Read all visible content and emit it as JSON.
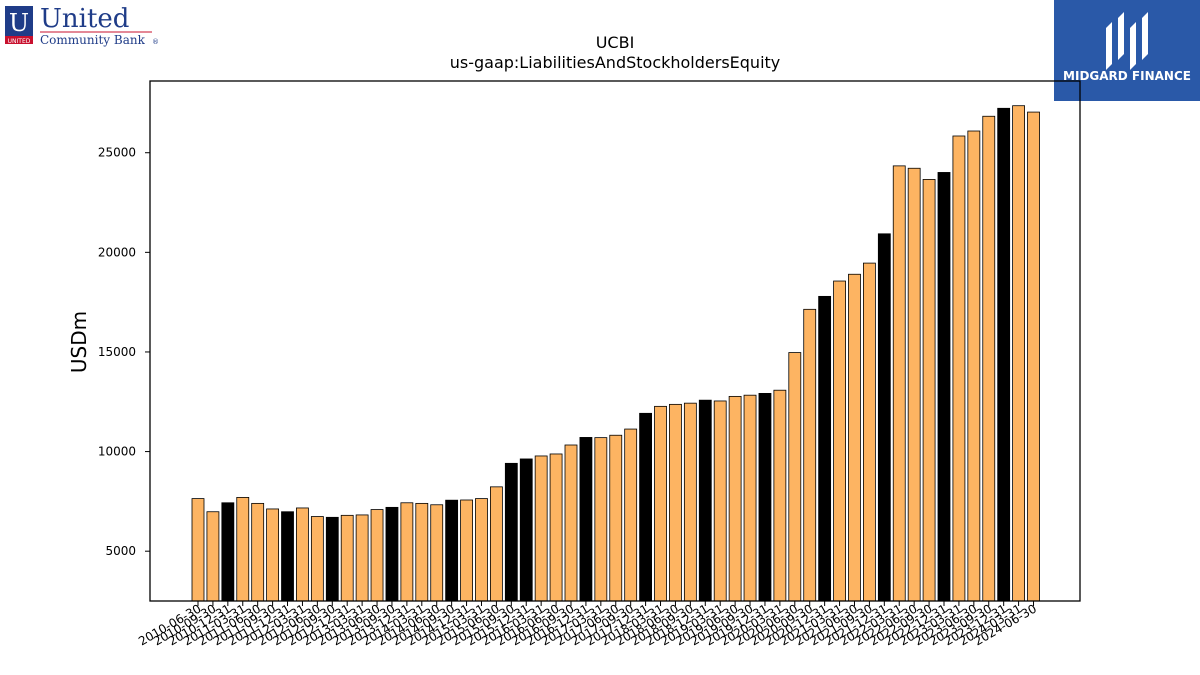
{
  "header": {
    "left_logo": {
      "name": "United",
      "subname": "Community Bank",
      "badge_letter": "U",
      "badge_caption": "UNITED",
      "mark": "®"
    },
    "right_logo": {
      "name": "MIDGARD FINANCE"
    }
  },
  "chart_data": {
    "type": "bar",
    "title": "UCBI",
    "subtitle": "us-gaap:LiabilitiesAndStockholdersEquity",
    "xlabel": "",
    "ylabel": "USDm",
    "ylim": [
      2500,
      28600
    ],
    "yticks": [
      5000,
      10000,
      15000,
      20000,
      25000
    ],
    "grid": false,
    "colors": {
      "quarter": "#fdb462",
      "year_end": "#000000",
      "edge": "#000000"
    },
    "categories": [
      "2010-06-30",
      "2010-09-30",
      "2010-12-31",
      "2011-03-31",
      "2011-06-30",
      "2011-09-30",
      "2011-12-31",
      "2012-03-31",
      "2012-06-30",
      "2012-09-30",
      "2012-12-31",
      "2013-03-31",
      "2013-06-30",
      "2013-09-30",
      "2013-12-31",
      "2014-03-31",
      "2014-06-30",
      "2014-09-30",
      "2014-12-31",
      "2015-03-31",
      "2015-06-30",
      "2015-09-30",
      "2015-12-31",
      "2016-03-31",
      "2016-06-30",
      "2016-09-30",
      "2016-12-31",
      "2017-03-31",
      "2017-06-30",
      "2017-09-30",
      "2017-12-31",
      "2018-03-31",
      "2018-06-30",
      "2018-09-30",
      "2018-12-31",
      "2019-03-31",
      "2019-06-30",
      "2019-09-30",
      "2019-12-31",
      "2020-03-31",
      "2020-06-30",
      "2020-09-30",
      "2020-12-31",
      "2021-03-31",
      "2021-06-30",
      "2021-09-30",
      "2021-12-31",
      "2022-03-31",
      "2022-06-30",
      "2022-09-30",
      "2022-12-31",
      "2023-03-31",
      "2023-06-30",
      "2023-09-30",
      "2023-12-31",
      "2024-03-31",
      "2024-06-30"
    ],
    "values": [
      7640,
      6980,
      7430,
      7700,
      7400,
      7120,
      6980,
      7170,
      6740,
      6700,
      6800,
      6820,
      7090,
      7200,
      7430,
      7400,
      7330,
      7560,
      7570,
      7640,
      8230,
      9410,
      9630,
      9780,
      9880,
      10330,
      10710,
      10700,
      10820,
      11130,
      11920,
      12270,
      12370,
      12430,
      12580,
      12540,
      12770,
      12830,
      12920,
      13080,
      14970,
      17140,
      17790,
      18560,
      18900,
      19460,
      20930,
      24340,
      24220,
      23660,
      24010,
      25840,
      26090,
      26830,
      27230,
      27360,
      27040
    ],
    "year_end_flags": [
      false,
      false,
      true,
      false,
      false,
      false,
      true,
      false,
      false,
      true,
      false,
      false,
      false,
      true,
      false,
      false,
      false,
      true,
      false,
      false,
      false,
      true,
      true,
      false,
      false,
      false,
      true,
      false,
      false,
      false,
      true,
      false,
      false,
      false,
      true,
      false,
      false,
      false,
      true,
      false,
      false,
      false,
      true,
      false,
      false,
      false,
      true,
      false,
      false,
      false,
      true,
      false,
      false,
      false,
      true,
      false,
      false
    ]
  }
}
